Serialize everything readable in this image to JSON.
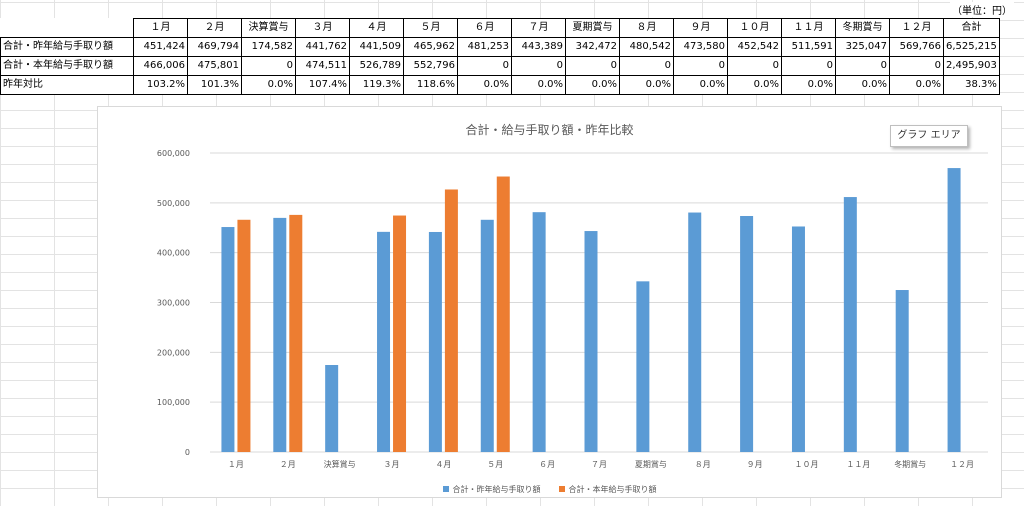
{
  "unit_label": "（単位：円）",
  "table": {
    "header": [
      "１月",
      "２月",
      "決算賞与",
      "３月",
      "４月",
      "５月",
      "６月",
      "７月",
      "夏期賞与",
      "８月",
      "９月",
      "１０月",
      "１１月",
      "冬期賞与",
      "１２月",
      "合計"
    ],
    "rows": [
      {
        "label": "合計・昨年給与手取り額",
        "cells": [
          "451,424",
          "469,794",
          "174,582",
          "441,762",
          "441,509",
          "465,962",
          "481,253",
          "443,389",
          "342,472",
          "480,542",
          "473,580",
          "452,542",
          "511,591",
          "325,047",
          "569,766",
          "6,525,215"
        ]
      },
      {
        "label": "合計・本年給与手取り額",
        "cells": [
          "466,006",
          "475,801",
          "0",
          "474,511",
          "526,789",
          "552,796",
          "0",
          "0",
          "0",
          "0",
          "0",
          "0",
          "0",
          "0",
          "0",
          "2,495,903"
        ]
      },
      {
        "label": "昨年対比",
        "cells": [
          "103.2%",
          "101.3%",
          "0.0%",
          "107.4%",
          "119.3%",
          "118.6%",
          "0.0%",
          "0.0%",
          "0.0%",
          "0.0%",
          "0.0%",
          "0.0%",
          "0.0%",
          "0.0%",
          "0.0%",
          "38.3%"
        ]
      }
    ]
  },
  "chart": {
    "tooltip": "グラフ エリア"
  },
  "chart_data": {
    "type": "bar",
    "title": "合計・給与手取り額・昨年比較",
    "categories": [
      "１月",
      "２月",
      "決算賞与",
      "３月",
      "４月",
      "５月",
      "６月",
      "７月",
      "夏期賞与",
      "８月",
      "９月",
      "１０月",
      "１１月",
      "冬期賞与",
      "１２月"
    ],
    "series": [
      {
        "name": "合計・昨年給与手取り額",
        "color": "#5b9bd5",
        "values": [
          451424,
          469794,
          174582,
          441762,
          441509,
          465962,
          481253,
          443389,
          342472,
          480542,
          473580,
          452542,
          511591,
          325047,
          569766
        ]
      },
      {
        "name": "合計・本年給与手取り額",
        "color": "#ed7d31",
        "values": [
          466006,
          475801,
          0,
          474511,
          526789,
          552796,
          0,
          0,
          0,
          0,
          0,
          0,
          0,
          0,
          0
        ]
      }
    ],
    "ylim": [
      0,
      600000
    ],
    "yticks": [
      "0",
      "100,000",
      "200,000",
      "300,000",
      "400,000",
      "500,000",
      "600,000"
    ],
    "grid": true,
    "legend_position": "bottom"
  }
}
